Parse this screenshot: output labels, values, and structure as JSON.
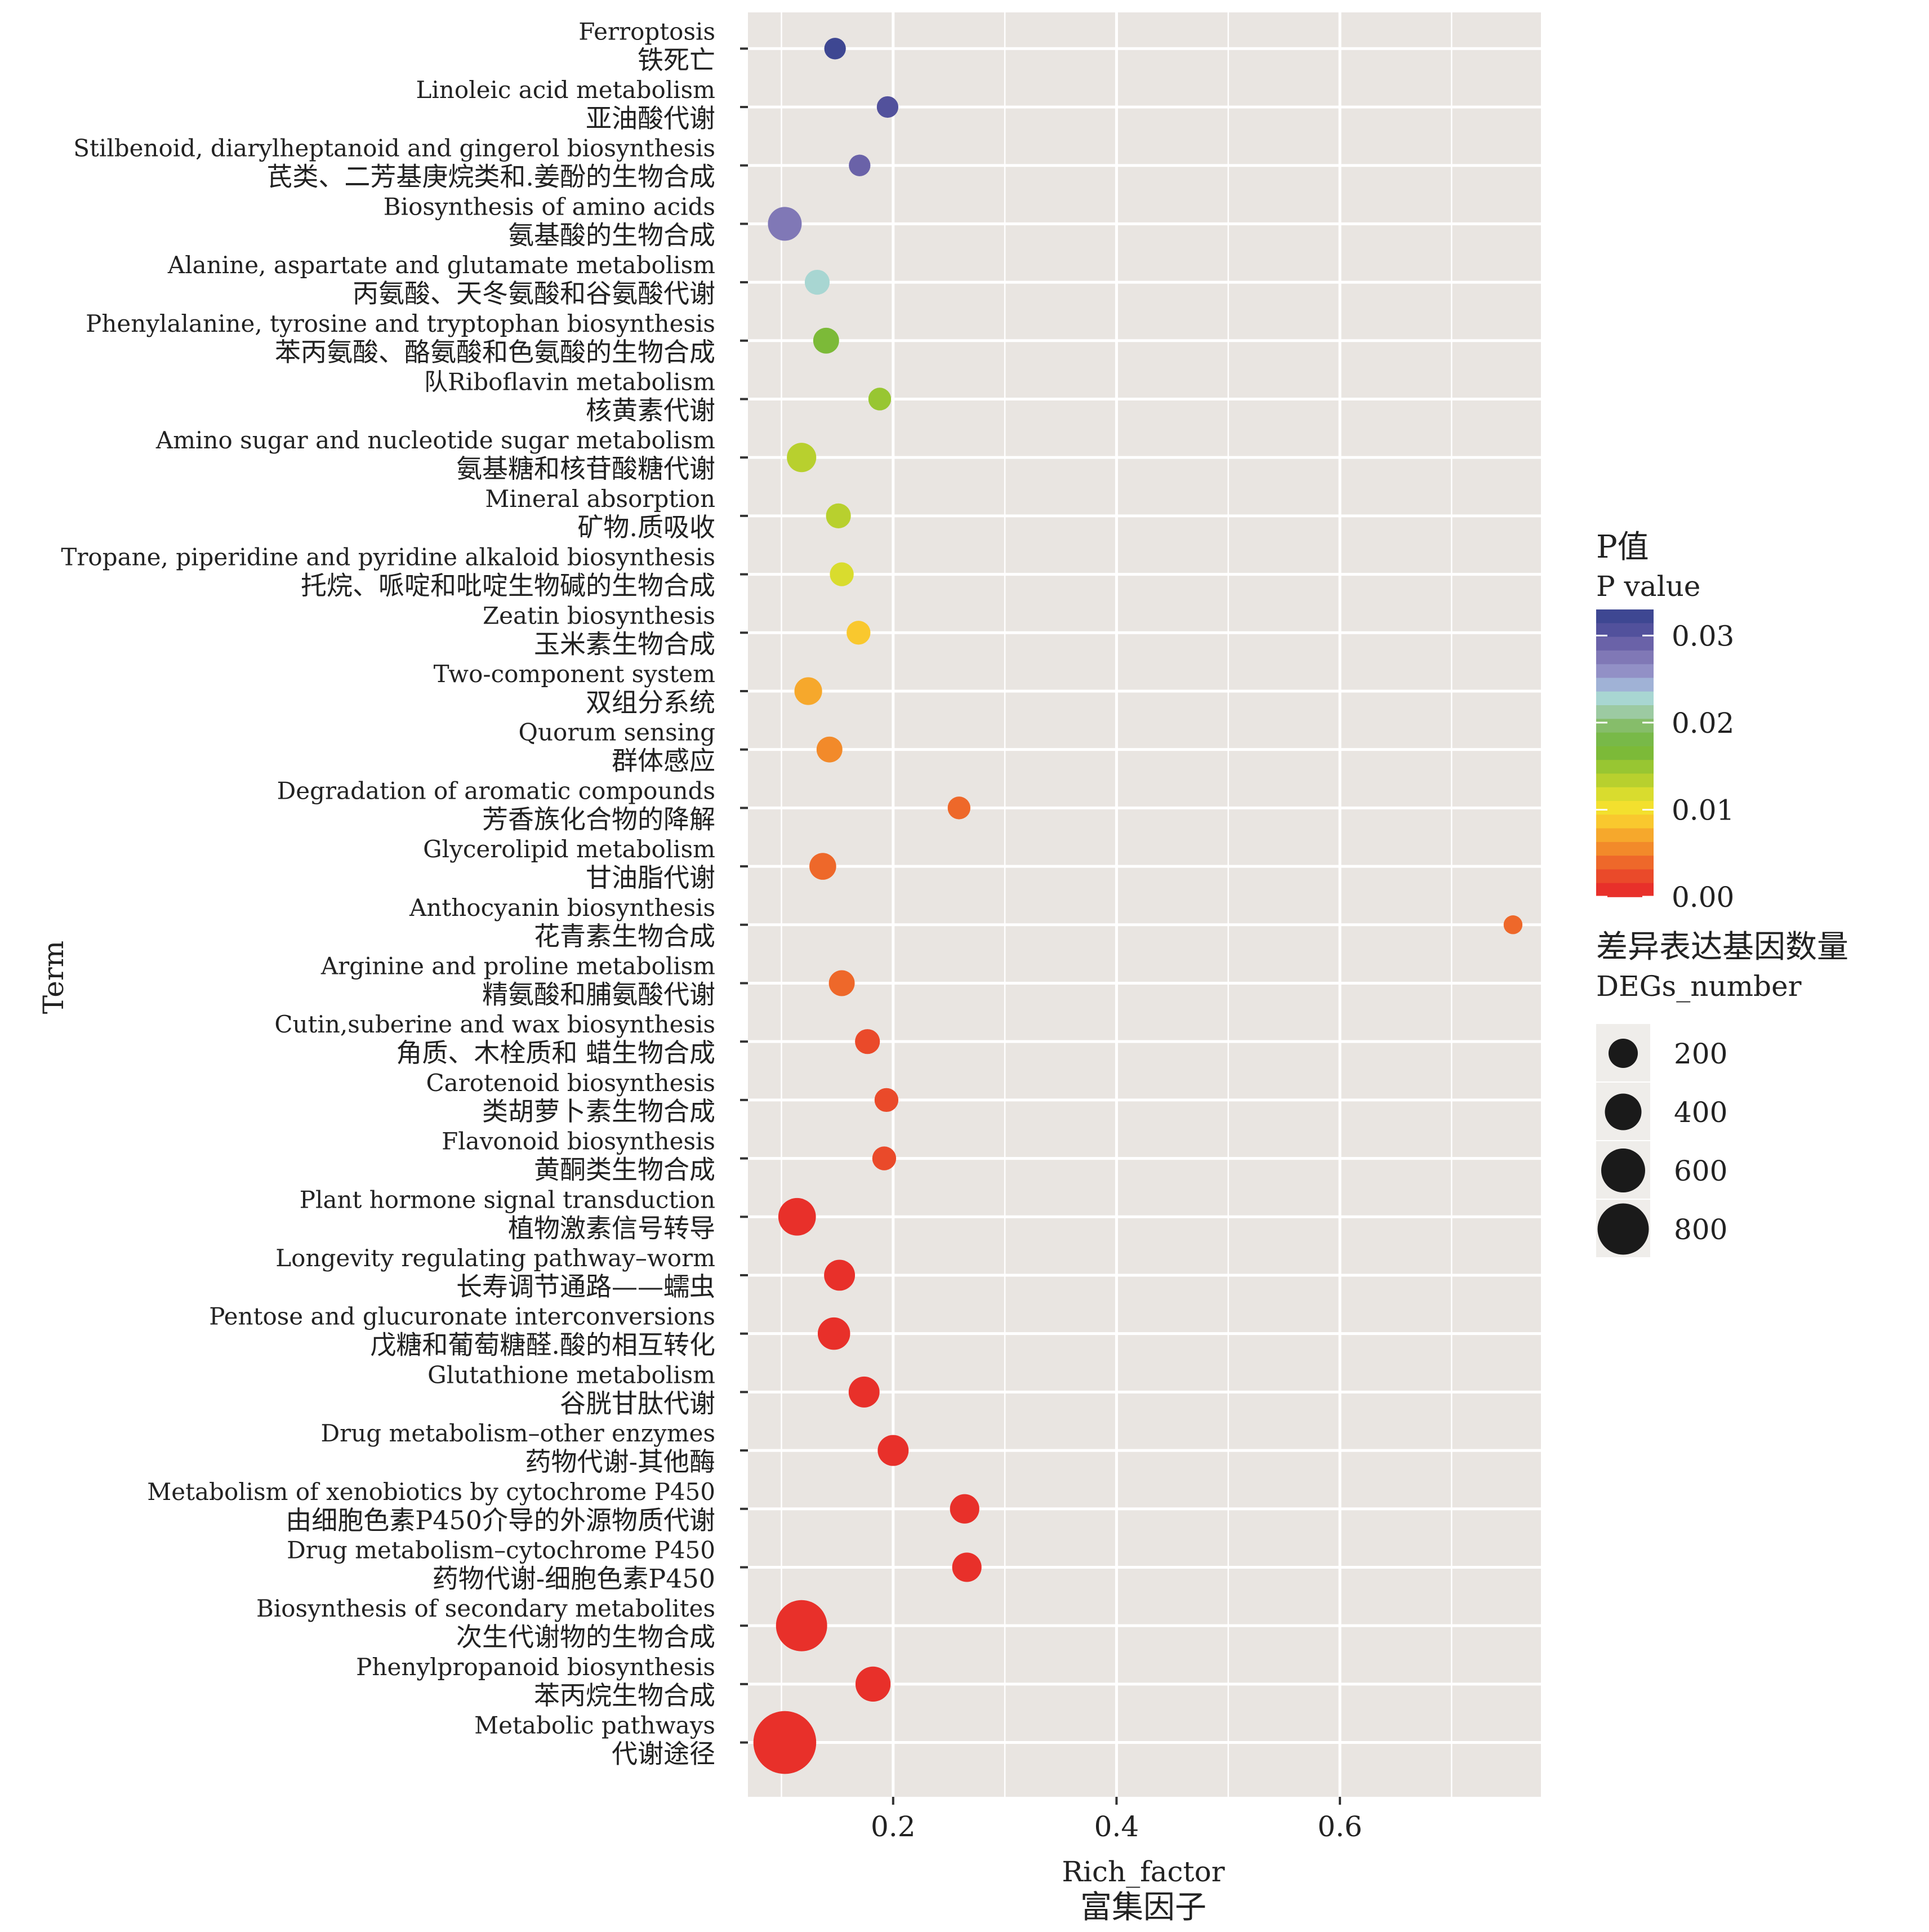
{
  "chart_data": {
    "type": "scatter",
    "xlabel_en": "Rich_factor",
    "xlabel_zh": "富集因子",
    "ylabel": "Term",
    "xlim": [
      0.07,
      0.78
    ],
    "x_ticks": [
      0.2,
      0.4,
      0.6
    ],
    "x_tick_labels": [
      "0.2",
      "0.4",
      "0.6"
    ],
    "grid": true,
    "legend_position": "right",
    "color_legend": {
      "title_zh": "P值",
      "title_en": "P value",
      "range": [
        0.0,
        0.033
      ],
      "ticks": [
        0.03,
        0.02,
        0.01,
        0.0
      ],
      "tick_labels": [
        "0.03",
        "0.02",
        "0.01",
        "0.00"
      ],
      "palette_low_to_high": [
        "#e8302a",
        "#ea4a2a",
        "#ee682a",
        "#f28a2a",
        "#f6a82c",
        "#f9c82e",
        "#f3e02e",
        "#d9dc2e",
        "#b8d02e",
        "#98c632",
        "#7cba38",
        "#78b948",
        "#86bd6a",
        "#9ccaa2",
        "#a8d6d2",
        "#a0b2d6",
        "#9290c6",
        "#8078b6",
        "#6a62a8",
        "#52519c",
        "#3e4792"
      ]
    },
    "size_legend": {
      "title_zh": "差异表达基因数量",
      "title_en": "DEGs_number",
      "values": [
        200,
        400,
        600,
        800
      ],
      "labels": [
        "200",
        "400",
        "600",
        "800"
      ],
      "color": "#1a1a1a"
    },
    "points": [
      {
        "en": "Ferroptosis",
        "zh": "铁死亡",
        "x": 0.148,
        "p": 0.033,
        "n": 30
      },
      {
        "en": "Linoleic acid metabolism",
        "zh": "亚油酸代谢",
        "x": 0.195,
        "p": 0.032,
        "n": 30
      },
      {
        "en": "Stilbenoid, diarylheptanoid and gingerol biosynthesis",
        "zh": "芪类、二芳基庚烷类和.姜酚的生物合成",
        "x": 0.17,
        "p": 0.029,
        "n": 30
      },
      {
        "en": "Biosynthesis of amino acids",
        "zh": "氨基酸的生物合成",
        "x": 0.103,
        "p": 0.028,
        "n": 100
      },
      {
        "en": "Alanine, aspartate and glutamate metabolism",
        "zh": "丙氨酸、天冬氨酸和谷氨酸代谢",
        "x": 0.132,
        "p": 0.023,
        "n": 45
      },
      {
        "en": "Phenylalanine, tyrosine and tryptophan biosynthesis",
        "zh": "苯丙氨酸、酪氨酸和色氨酸的生物合成",
        "x": 0.14,
        "p": 0.017,
        "n": 50
      },
      {
        "en": "队Riboflavin metabolism",
        "zh": "核黄素代谢",
        "x": 0.188,
        "p": 0.015,
        "n": 35
      },
      {
        "en": "Amino sugar and nucleotide sugar metabolism",
        "zh": "氨基糖和核苷酸糖代谢",
        "x": 0.118,
        "p": 0.014,
        "n": 70
      },
      {
        "en": "Mineral absorption",
        "zh": "矿物.质吸收",
        "x": 0.151,
        "p": 0.013,
        "n": 45
      },
      {
        "en": "Tropane, piperidine and pyridine alkaloid biosynthesis",
        "zh": "托烷、哌啶和吡啶生物碱的生物合成",
        "x": 0.154,
        "p": 0.0115,
        "n": 40
      },
      {
        "en": "Zeatin biosynthesis",
        "zh": "玉米素生物合成",
        "x": 0.169,
        "p": 0.009,
        "n": 40
      },
      {
        "en": "Two-component system",
        "zh": "双组分系统",
        "x": 0.124,
        "p": 0.0065,
        "n": 60
      },
      {
        "en": "Quorum sensing",
        "zh": "群体感应",
        "x": 0.143,
        "p": 0.0055,
        "n": 50
      },
      {
        "en": "Degradation of aromatic compounds",
        "zh": "芳香族化合物的降解",
        "x": 0.259,
        "p": 0.004,
        "n": 35
      },
      {
        "en": "Glycerolipid metabolism",
        "zh": "甘油脂代谢",
        "x": 0.137,
        "p": 0.004,
        "n": 55
      },
      {
        "en": "Anthocyanin biosynthesis",
        "zh": "花青素生物合成",
        "x": 0.755,
        "p": 0.003,
        "n": 20
      },
      {
        "en": "Arginine and proline metabolism",
        "zh": "精氨酸和脯氨酸代谢",
        "x": 0.154,
        "p": 0.0025,
        "n": 50
      },
      {
        "en": "Cutin,suberine and wax biosynthesis",
        "zh": "角质、木栓质和 蜡生物合成",
        "x": 0.177,
        "p": 0.0015,
        "n": 45
      },
      {
        "en": "Carotenoid biosynthesis",
        "zh": "类胡萝卜素生物合成",
        "x": 0.194,
        "p": 0.0012,
        "n": 40
      },
      {
        "en": "Flavonoid biosynthesis",
        "zh": "黄酮类生物合成",
        "x": 0.192,
        "p": 0.001,
        "n": 40
      },
      {
        "en": "Plant hormone signal transduction",
        "zh": "植物激素信号转导",
        "x": 0.114,
        "p": 0.0002,
        "n": 130
      },
      {
        "en": "Longevity regulating pathway–worm",
        "zh": "长寿调节通路——蠕虫",
        "x": 0.152,
        "p": 0.0002,
        "n": 80
      },
      {
        "en": "Pentose and glucuronate interconversions",
        "zh": "戊糖和葡萄糖醛.酸的相互转化",
        "x": 0.147,
        "p": 0.0002,
        "n": 90
      },
      {
        "en": "Glutathione metabolism",
        "zh": "谷胱甘肽代谢",
        "x": 0.174,
        "p": 0.0002,
        "n": 80
      },
      {
        "en": "Drug metabolism–other enzymes",
        "zh": "药物代谢-其他酶",
        "x": 0.2,
        "p": 0.0002,
        "n": 80
      },
      {
        "en": "Metabolism of xenobiotics by cytochrome P450",
        "zh": "由细胞色素P450介导的外源物质代谢",
        "x": 0.264,
        "p": 0.0002,
        "n": 70
      },
      {
        "en": "Drug metabolism–cytochrome P450",
        "zh": "药物代谢-细胞色素P450",
        "x": 0.266,
        "p": 0.0002,
        "n": 70
      },
      {
        "en": "Biosynthesis of secondary metabolites",
        "zh": "次生代谢物的生物合成",
        "x": 0.118,
        "p": 0.0001,
        "n": 270
      },
      {
        "en": "Phenylpropanoid biosynthesis",
        "zh": "苯丙烷生物合成",
        "x": 0.182,
        "p": 0.0001,
        "n": 110
      },
      {
        "en": "Metabolic pathways",
        "zh": "代谢途径",
        "x": 0.103,
        "p": 0.0,
        "n": 430
      }
    ]
  }
}
